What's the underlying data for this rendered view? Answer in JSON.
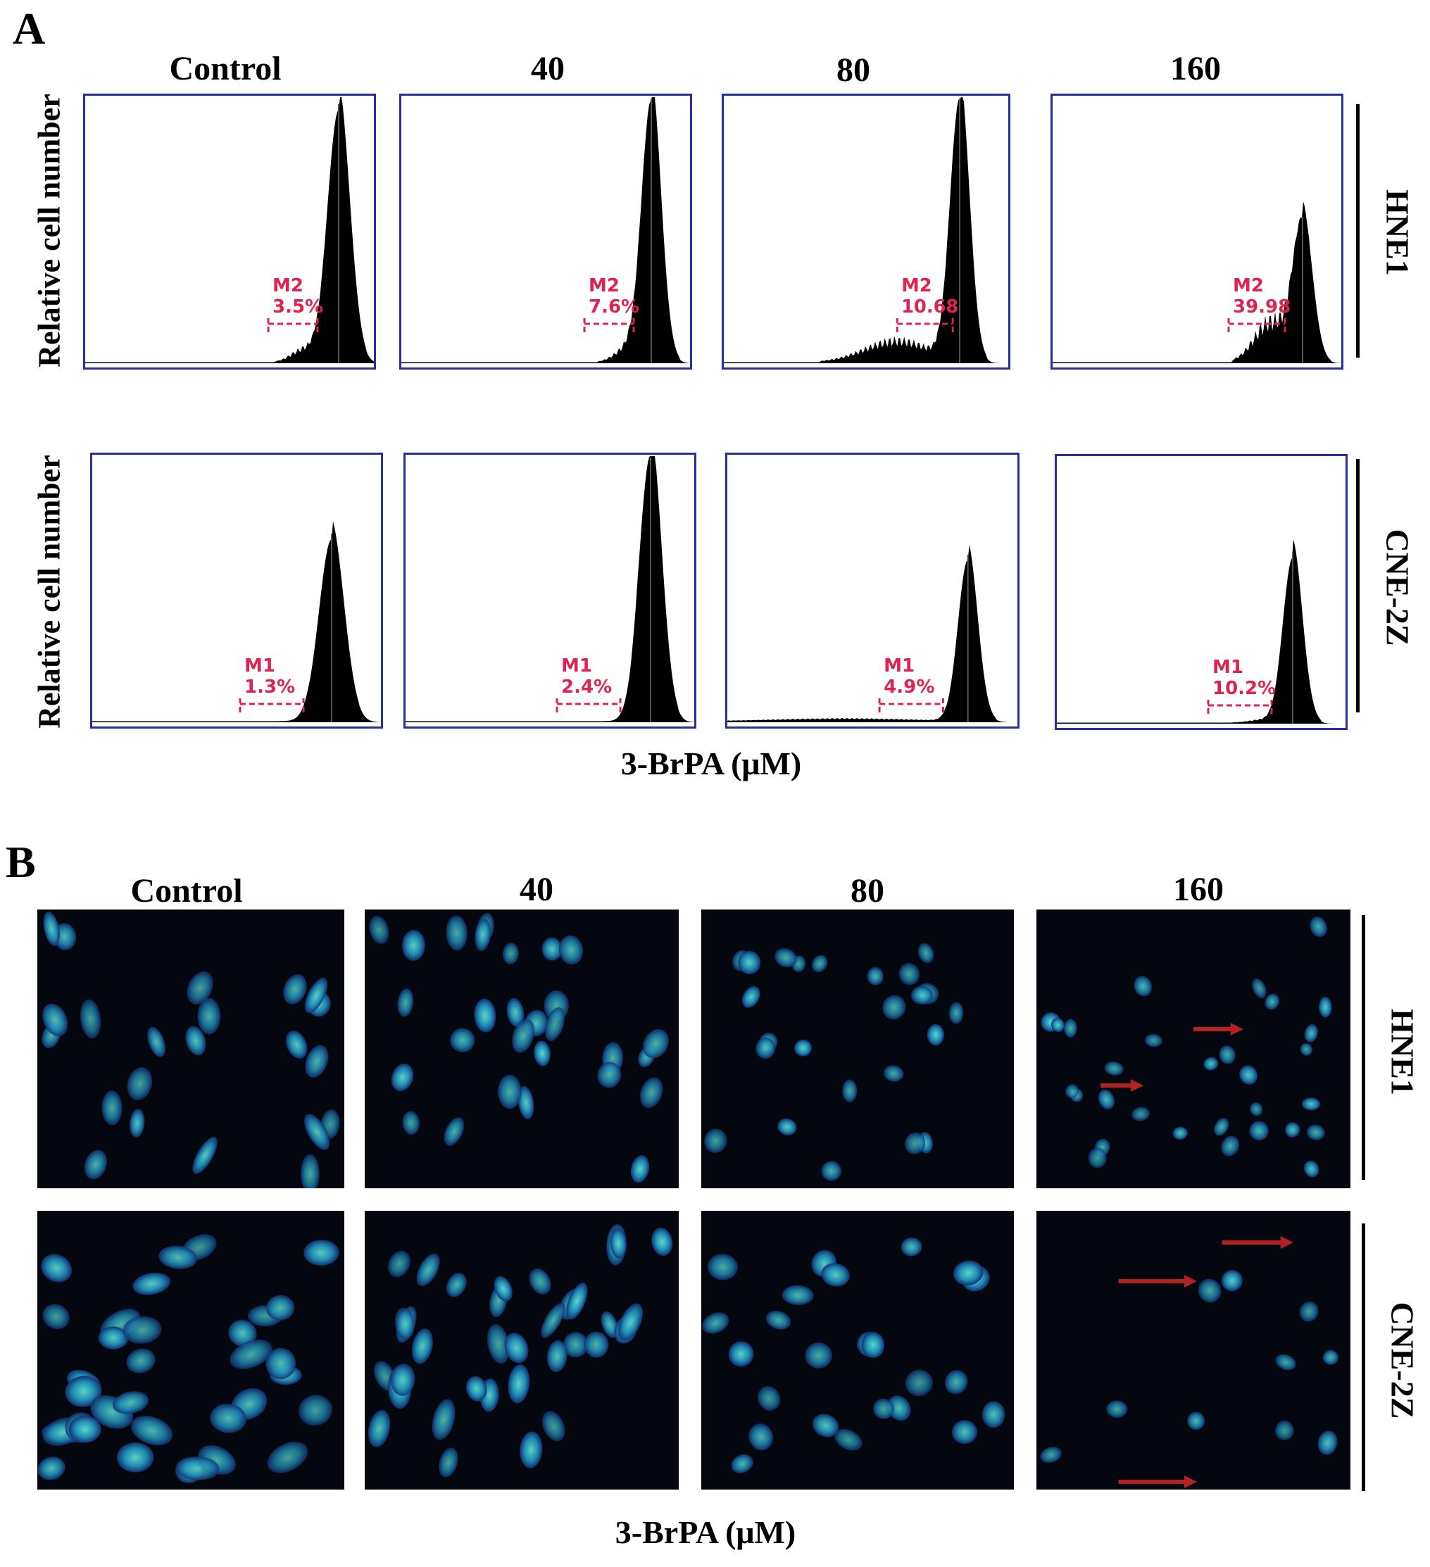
{
  "panel_a": {
    "letter": "A",
    "columns": [
      "Control",
      "40",
      "80",
      "160"
    ],
    "ylabel": "Relative cell number",
    "xlabel": "3-BrPA (μM)",
    "rows": [
      "HNE1",
      "CNE-2Z"
    ]
  },
  "panel_b": {
    "letter": "B",
    "columns": [
      "Control",
      "40",
      "80",
      "160"
    ],
    "xlabel": "3-BrPA (μM)",
    "rows": [
      "HNE1",
      "CNE-2Z"
    ]
  },
  "colors": {
    "frame": "#2a2e9a",
    "marker": "#e0234e",
    "histogram": "#000000",
    "nucleus": "#1fa6b8",
    "arrow": "#b22222"
  },
  "chart_data": {
    "type": "histogram",
    "xlabel": "3-BrPA (μM)",
    "ylabel": "Relative cell number",
    "panels": [
      {
        "cell_line": "HNE1",
        "treatment": "Control",
        "marker": "M2",
        "percent": "3.5%"
      },
      {
        "cell_line": "HNE1",
        "treatment": "40",
        "marker": "M2",
        "percent": "7.6%"
      },
      {
        "cell_line": "HNE1",
        "treatment": "80",
        "marker": "M2",
        "percent": "10.68"
      },
      {
        "cell_line": "HNE1",
        "treatment": "160",
        "marker": "M2",
        "percent": "39.98"
      },
      {
        "cell_line": "CNE-2Z",
        "treatment": "Control",
        "marker": "M1",
        "percent": "1.3%"
      },
      {
        "cell_line": "CNE-2Z",
        "treatment": "40",
        "marker": "M1",
        "percent": "2.4%"
      },
      {
        "cell_line": "CNE-2Z",
        "treatment": "80",
        "marker": "M1",
        "percent": "4.9%"
      },
      {
        "cell_line": "CNE-2Z",
        "treatment": "160",
        "marker": "M1",
        "percent": "10.2%"
      }
    ]
  }
}
